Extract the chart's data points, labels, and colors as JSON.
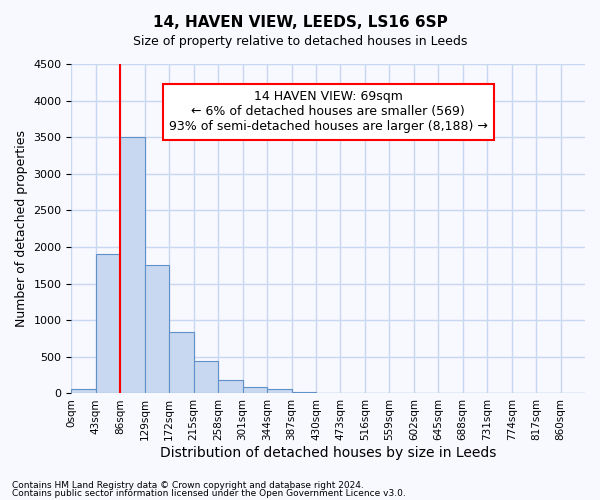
{
  "title": "14, HAVEN VIEW, LEEDS, LS16 6SP",
  "subtitle": "Size of property relative to detached houses in Leeds",
  "xlabel": "Distribution of detached houses by size in Leeds",
  "ylabel": "Number of detached properties",
  "bar_color": "#c8d8f0",
  "bar_edge_color": "#6090c8",
  "bin_labels": [
    "0sqm",
    "43sqm",
    "86sqm",
    "129sqm",
    "172sqm",
    "215sqm",
    "258sqm",
    "301sqm",
    "344sqm",
    "387sqm",
    "430sqm",
    "473sqm",
    "516sqm",
    "559sqm",
    "602sqm",
    "645sqm",
    "688sqm",
    "731sqm",
    "774sqm",
    "817sqm",
    "860sqm"
  ],
  "bar_heights": [
    55,
    1900,
    3500,
    1750,
    840,
    450,
    180,
    90,
    55,
    25,
    0,
    0,
    0,
    0,
    0,
    0,
    0,
    0,
    0,
    0,
    0
  ],
  "ylim": [
    0,
    4500
  ],
  "yticks": [
    0,
    500,
    1000,
    1500,
    2000,
    2500,
    3000,
    3500,
    4000,
    4500
  ],
  "annotation_text": "14 HAVEN VIEW: 69sqm\n← 6% of detached houses are smaller (569)\n93% of semi-detached houses are larger (8,188) →",
  "annotation_box_color": "white",
  "annotation_box_edge": "red",
  "red_line_color": "red",
  "footer_line1": "Contains HM Land Registry data © Crown copyright and database right 2024.",
  "footer_line2": "Contains public sector information licensed under the Open Government Licence v3.0.",
  "background_color": "#f8f8ff",
  "grid_color": "#c8d8f0",
  "title_fontsize": 11,
  "subtitle_fontsize": 9,
  "xlabel_fontsize": 10,
  "ylabel_fontsize": 9
}
